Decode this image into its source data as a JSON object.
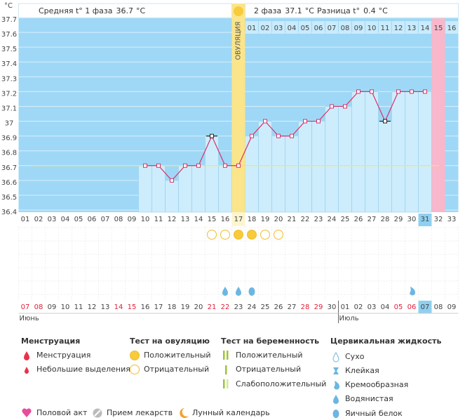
{
  "chart_data": {
    "type": "bbt",
    "unit_label": "°C",
    "phase1": {
      "label": "Средняя t° 1 фаза",
      "value": 36.7,
      "unit": "°C"
    },
    "phase2": {
      "label": "2 фаза",
      "value": 37.1,
      "unit": "°C"
    },
    "difference": {
      "label": "Разница t°",
      "value": 0.4,
      "unit": "°C"
    },
    "ovulation_label": "ОВУЛЯЦИЯ",
    "ovulation_day": 17,
    "phase2_start": 18,
    "phase2_days": [
      "01",
      "02",
      "03",
      "04",
      "05",
      "06",
      "07",
      "08",
      "09",
      "10",
      "11",
      "12",
      "13",
      "14",
      "15",
      "16"
    ],
    "predicted_period_days": [
      32
    ],
    "today": 31,
    "ylim": [
      36.4,
      37.7
    ],
    "yticks": [
      36.4,
      36.5,
      36.6,
      36.7,
      36.8,
      36.9,
      37,
      37.1,
      37.2,
      37.3,
      37.4,
      37.5,
      37.6,
      37.7
    ],
    "days": [
      "01",
      "02",
      "03",
      "04",
      "05",
      "06",
      "07",
      "08",
      "09",
      "10",
      "11",
      "12",
      "13",
      "14",
      "15",
      "16",
      "17",
      "18",
      "19",
      "20",
      "21",
      "22",
      "23",
      "24",
      "25",
      "26",
      "27",
      "28",
      "29",
      "30",
      "31",
      "32",
      "33"
    ],
    "values": [
      null,
      null,
      null,
      null,
      null,
      null,
      null,
      null,
      null,
      36.7,
      36.7,
      36.6,
      36.7,
      36.7,
      36.9,
      36.7,
      36.7,
      36.9,
      37,
      36.9,
      36.9,
      37,
      37,
      37.1,
      37.1,
      37.2,
      37.2,
      37,
      37.2,
      37.2,
      37.2,
      null,
      null
    ],
    "color": "#d6336c",
    "coverline": 36.7,
    "highlighted_days": [
      15,
      28
    ],
    "dates": [
      "07",
      "08",
      "09",
      "10",
      "11",
      "12",
      "13",
      "14",
      "15",
      "16",
      "17",
      "18",
      "19",
      "20",
      "21",
      "22",
      "23",
      "24",
      "25",
      "26",
      "27",
      "28",
      "29",
      "30",
      "01",
      "02",
      "03",
      "04",
      "05",
      "06",
      "07",
      "08",
      "09"
    ],
    "weekend_days": [
      1,
      2,
      8,
      9,
      15,
      16,
      22,
      23,
      29,
      30
    ],
    "months": [
      {
        "label": "Июнь",
        "day": 1
      },
      {
        "label": "Июль",
        "day": 25
      }
    ],
    "ovulation_tests": [
      {
        "day": 15,
        "result": "negative"
      },
      {
        "day": 16,
        "result": "negative"
      },
      {
        "day": 17,
        "result": "positive"
      },
      {
        "day": 18,
        "result": "positive"
      },
      {
        "day": 19,
        "result": "negative"
      },
      {
        "day": 20,
        "result": "negative"
      }
    ],
    "cervical_fluid": [
      {
        "day": 16,
        "type": "watery"
      },
      {
        "day": 17,
        "type": "watery"
      },
      {
        "day": 18,
        "type": "egg_white"
      },
      {
        "day": 30,
        "type": "creamy"
      }
    ]
  },
  "legend": {
    "menstruation": {
      "title": "Менструация",
      "items": [
        "Менструация",
        "Небольшие выделения"
      ]
    },
    "ovulation_test": {
      "title": "Тест на овуляцию",
      "items": [
        "Положительный",
        "Отрицательный"
      ]
    },
    "pregnancy_test": {
      "title": "Тест на беременность",
      "items": [
        "Положительный",
        "Отрицательный",
        "Слабоположительный"
      ]
    },
    "cervical_fluid": {
      "title": "Цервикальная жидкость",
      "items": [
        "Сухо",
        "Клейкая",
        "Кремообразная",
        "Водянистая",
        "Яичный белок"
      ]
    },
    "other": [
      "Половой акт",
      "Прием лекарств",
      "Лунный календарь"
    ]
  }
}
